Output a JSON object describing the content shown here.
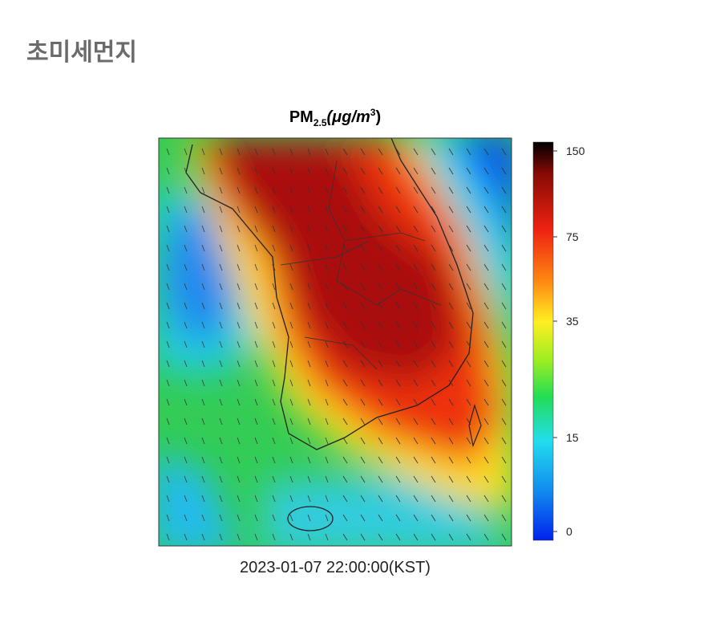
{
  "header": {
    "title": "초미세먼지"
  },
  "map": {
    "title": {
      "main": "PM",
      "sub": "2.5",
      "unit": "(μg/m",
      "sup": "3",
      "close": ")"
    },
    "colorbar_ticks": [
      150,
      75,
      35,
      15,
      0
    ],
    "timestamp": "2023-01-07 22:00:00(KST)"
  }
}
